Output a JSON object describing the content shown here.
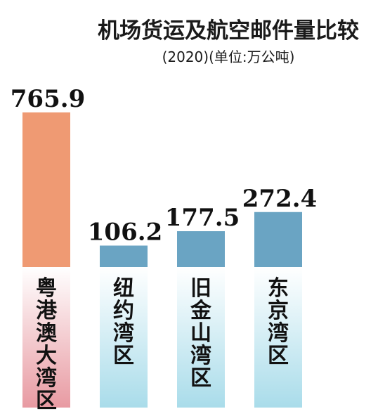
{
  "chart_data": {
    "type": "bar",
    "title": "机场货运及航空邮件量比较",
    "subtitle": "(2020)(单位:万公吨)",
    "categories": [
      "粤港澳大湾区",
      "纽约湾区",
      "旧金山湾区",
      "东京湾区"
    ],
    "values": [
      765.9,
      106.2,
      177.5,
      272.4
    ],
    "value_labels": [
      "765.9",
      "106.2",
      "177.5",
      "272.4"
    ],
    "ylim": [
      0,
      800
    ],
    "grid": false,
    "legend": "none",
    "colors": {
      "highlight_bar": "#ef9a73",
      "bar": "#6aa4c3",
      "highlight_panel_top": "#ffffff",
      "highlight_panel_bottom": "#e89aa2",
      "panel_top": "#ffffff",
      "panel_bottom": "#a9dcea"
    }
  }
}
